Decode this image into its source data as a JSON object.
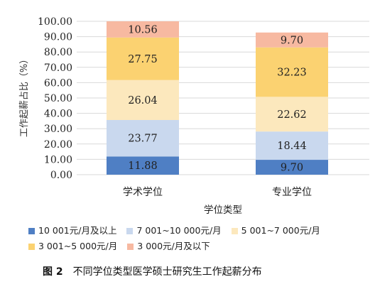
{
  "chart_data": {
    "type": "bar",
    "stacked": true,
    "xlabel": "学位类型",
    "ylabel": "工作起薪占比（%）",
    "ylim": [
      0,
      100
    ],
    "yticks": [
      "0.00",
      "10.00",
      "20.00",
      "30.00",
      "40.00",
      "50.00",
      "60.00",
      "70.00",
      "80.00",
      "90.00",
      "100.00"
    ],
    "categories": [
      "学术学位",
      "专业学位"
    ],
    "series": [
      {
        "name": "10 001元/月及以上",
        "color": "#4f7fc4",
        "values": [
          11.88,
          9.7
        ],
        "labels": [
          "11.88",
          "9.70"
        ]
      },
      {
        "name": "7 001~10 000元/月",
        "color": "#c9d8ee",
        "values": [
          23.77,
          18.44
        ],
        "labels": [
          "23.77",
          "18.44"
        ]
      },
      {
        "name": "5 001~7 000元/月",
        "color": "#fce8bd",
        "values": [
          26.04,
          22.62
        ],
        "labels": [
          "26.04",
          "22.62"
        ]
      },
      {
        "name": "3 001~5 000元/月",
        "color": "#fbd271",
        "values": [
          27.75,
          32.23
        ],
        "labels": [
          "27.75",
          "32.23"
        ]
      },
      {
        "name": "3 000元/月及以下",
        "color": "#f7b9a1",
        "values": [
          10.56,
          9.7
        ],
        "labels": [
          "10.56",
          "9.70"
        ]
      }
    ],
    "grid": true,
    "legend_position": "bottom"
  },
  "caption": {
    "figure_no": "图 2",
    "text": "不同学位类型医学硕士研究生工作起薪分布"
  }
}
